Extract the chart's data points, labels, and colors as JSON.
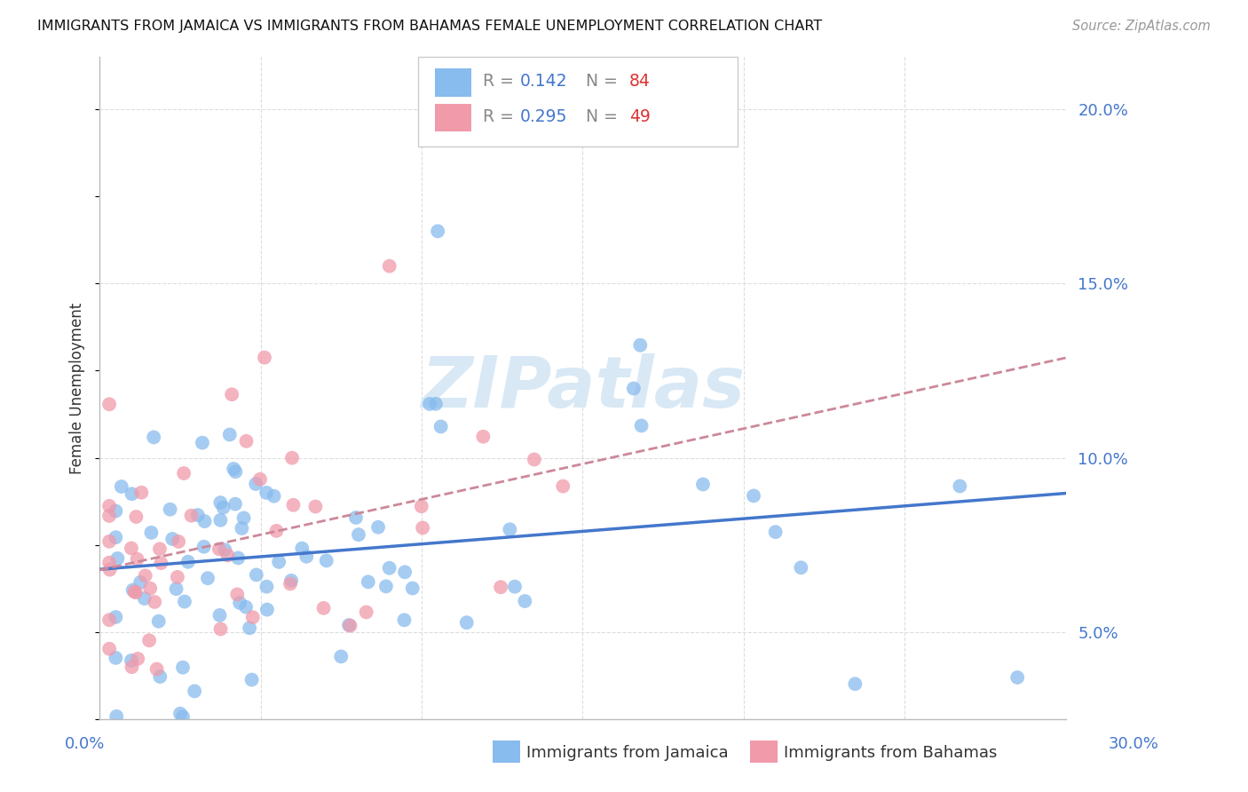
{
  "title": "IMMIGRANTS FROM JAMAICA VS IMMIGRANTS FROM BAHAMAS FEMALE UNEMPLOYMENT CORRELATION CHART",
  "source": "Source: ZipAtlas.com",
  "ylabel": "Female Unemployment",
  "jamaica_color": "#88bbee",
  "bahamas_color": "#f09aaa",
  "jamaica_line_color": "#4477cc",
  "bahamas_line_color": "#cc8899",
  "watermark": "ZIPatlas",
  "watermark_color": "#d8e8f5",
  "jamaica_R": 0.142,
  "jamaica_N": 84,
  "bahamas_R": 0.295,
  "bahamas_N": 49,
  "background_color": "#ffffff",
  "grid_color": "#dddddd",
  "ytick_color": "#4477cc",
  "xtick_color": "#4477cc",
  "text_color": "#333333",
  "source_color": "#999999",
  "legend_r_color": "#4477cc",
  "legend_n_color": "#dd3333",
  "legend_label_color": "#888888"
}
